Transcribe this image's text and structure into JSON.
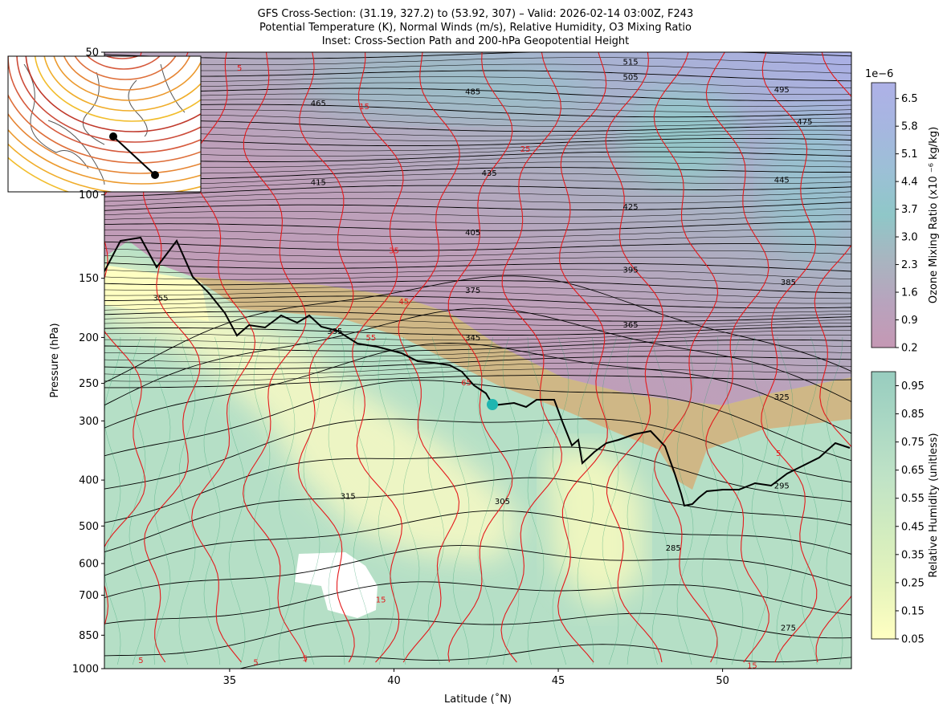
{
  "chart_data": {
    "type": "cross-section",
    "title": [
      "GFS Cross-Section: (31.19, 327.2) to (53.92, 307) – Valid: 2026-02-14 03:00Z, F243",
      "Potential Temperature (K), Normal Winds (m/s), Relative Humidity, O3 Mixing Ratio",
      "Inset: Cross-Section Path and 200-hPa Geopotential Height"
    ],
    "xlabel": "Latitude (˚N)",
    "ylabel": "Pressure (hPa)",
    "xlim": [
      31.19,
      53.92
    ],
    "xticks": [
      35,
      40,
      45,
      50
    ],
    "ylim": [
      1000,
      50
    ],
    "yscale": "log",
    "yticks": [
      50,
      100,
      150,
      200,
      250,
      300,
      400,
      500,
      600,
      700,
      850,
      1000
    ],
    "theta_labels": {
      "color": "#000000",
      "labels": [
        {
          "value": 515,
          "lat": 47.2,
          "p": 52.4
        },
        {
          "value": 505,
          "lat": 47.2,
          "p": 56.4
        },
        {
          "value": 485,
          "lat": 42.4,
          "p": 60.5
        },
        {
          "value": 465,
          "lat": 37.7,
          "p": 64
        },
        {
          "value": 495,
          "lat": 51.8,
          "p": 60
        },
        {
          "value": 475,
          "lat": 52.5,
          "p": 70
        },
        {
          "value": 435,
          "lat": 42.9,
          "p": 90
        },
        {
          "value": 415,
          "lat": 37.7,
          "p": 94
        },
        {
          "value": 445,
          "lat": 51.8,
          "p": 93
        },
        {
          "value": 425,
          "lat": 47.2,
          "p": 106
        },
        {
          "value": 405,
          "lat": 42.4,
          "p": 120
        },
        {
          "value": 395,
          "lat": 47.2,
          "p": 144
        },
        {
          "value": 385,
          "lat": 52.0,
          "p": 153
        },
        {
          "value": 375,
          "lat": 42.4,
          "p": 159
        },
        {
          "value": 355,
          "lat": 32.9,
          "p": 165
        },
        {
          "value": 365,
          "lat": 47.2,
          "p": 188
        },
        {
          "value": 335,
          "lat": 38.2,
          "p": 194
        },
        {
          "value": 345,
          "lat": 42.4,
          "p": 200
        },
        {
          "value": 325,
          "lat": 51.8,
          "p": 267
        },
        {
          "value": 315,
          "lat": 38.6,
          "p": 432
        },
        {
          "value": 305,
          "lat": 43.3,
          "p": 443
        },
        {
          "value": 295,
          "lat": 51.8,
          "p": 411
        },
        {
          "value": 285,
          "lat": 48.5,
          "p": 556
        },
        {
          "value": 275,
          "lat": 52.0,
          "p": 820
        }
      ]
    },
    "wind_labels": {
      "color": "#e41a1c",
      "labels": [
        {
          "value": 5,
          "lat": 35.3,
          "p": 54
        },
        {
          "value": 15,
          "lat": 39.1,
          "p": 65
        },
        {
          "value": 25,
          "lat": 44.0,
          "p": 80
        },
        {
          "value": 35,
          "lat": 40.0,
          "p": 131
        },
        {
          "value": 45,
          "lat": 40.3,
          "p": 168
        },
        {
          "value": 55,
          "lat": 39.3,
          "p": 200
        },
        {
          "value": 65,
          "lat": 42.2,
          "p": 249
        },
        {
          "value": 5,
          "lat": 51.7,
          "p": 351
        },
        {
          "value": 15,
          "lat": 39.6,
          "p": 715
        },
        {
          "value": 15,
          "lat": 50.9,
          "p": 985
        },
        {
          "value": 5,
          "lat": 32.3,
          "p": 960
        },
        {
          "value": 5,
          "lat": 35.8,
          "p": 970
        },
        {
          "value": 5,
          "lat": 37.3,
          "p": 950
        }
      ]
    },
    "colorbars": [
      {
        "label": "Ozone Mixing Ratio (x10 ⁻⁶ kg/kg)",
        "offset_text": "1e−6",
        "lim": [
          0.2,
          6.9
        ],
        "ticks": [
          0.2,
          0.9,
          1.6,
          2.3,
          {
            "value": 3,
            "label": "3.0"
          },
          3.7,
          4.4,
          5.1,
          5.8,
          6.5
        ],
        "colors": [
          "#c598b4",
          "#b8a3bd",
          "#a8b5c0",
          "#8fc7c8",
          "#9cc0d6",
          "#a6b6e0",
          "#aeb1e7"
        ]
      },
      {
        "label": "Relative Humidity (unitless)",
        "lim": [
          0.05,
          1.0
        ],
        "ticks": [
          0.05,
          0.15,
          0.25,
          0.35,
          0.45,
          0.55,
          0.65,
          0.75,
          0.85,
          0.95
        ],
        "colors": [
          "#ffffc2",
          "#e6f4bc",
          "#d2ecbf",
          "#c0e3c6",
          "#abd8c4",
          "#98cdbf"
        ]
      }
    ]
  }
}
